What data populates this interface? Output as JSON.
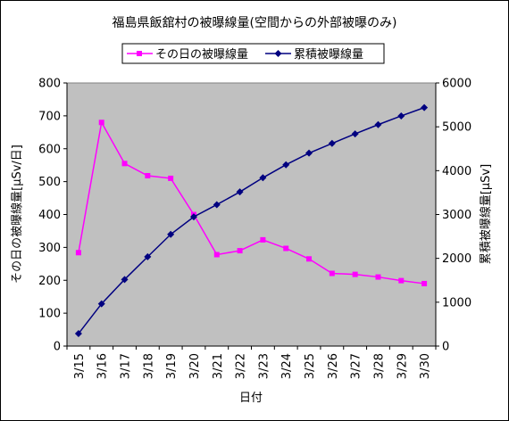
{
  "chart_data": {
    "type": "line",
    "title": "福島県飯舘村の被曝線量(空間からの外部被曝のみ)",
    "xlabel": "日付",
    "ylabel_left": "その日の被曝線量[μSv/日]",
    "ylabel_right": "累積被曝線量[μSv]",
    "categories": [
      "3/15",
      "3/16",
      "3/17",
      "3/18",
      "3/19",
      "3/20",
      "3/21",
      "3/22",
      "3/23",
      "3/24",
      "3/25",
      "3/26",
      "3/27",
      "3/28",
      "3/29",
      "3/30"
    ],
    "y_left": {
      "min": 0,
      "max": 800,
      "step": 100,
      "ticks": [
        "0",
        "100",
        "200",
        "300",
        "400",
        "500",
        "600",
        "700",
        "800"
      ]
    },
    "y_right": {
      "min": 0,
      "max": 6000,
      "step": 1000,
      "ticks": [
        "0",
        "1000",
        "2000",
        "3000",
        "4000",
        "5000",
        "6000"
      ]
    },
    "grid": false,
    "plot_background": "#c0c0c0",
    "legend_position": "top",
    "series": [
      {
        "name": "その日の被曝線量",
        "axis": "left",
        "color": "#ff00ff",
        "marker": "square",
        "values": [
          284,
          680,
          555,
          518,
          510,
          400,
          278,
          290,
          323,
          297,
          265,
          221,
          218,
          210,
          199,
          190
        ]
      },
      {
        "name": "累積被曝線量",
        "axis": "right",
        "color": "#000080",
        "marker": "diamond",
        "values": [
          284,
          964,
          1519,
          2037,
          2547,
          2947,
          3225,
          3515,
          3838,
          4135,
          4400,
          4621,
          4839,
          5049,
          5248,
          5438
        ]
      }
    ]
  }
}
